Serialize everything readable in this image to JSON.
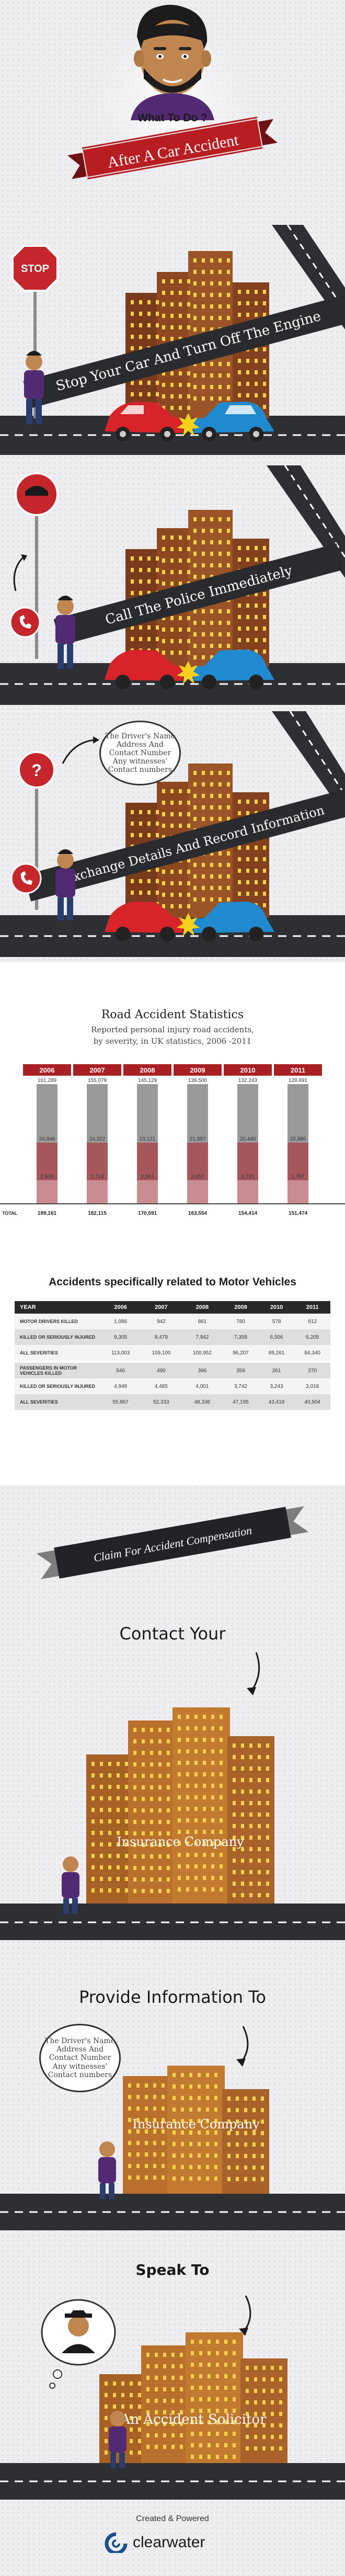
{
  "header": {
    "question": "What To Do ?",
    "title": "After A Car Accident"
  },
  "steps": [
    {
      "sign": "STOP",
      "text": "Stop Your Car And Turn Off The Engine"
    },
    {
      "text": "Call The Police Immediately"
    },
    {
      "text": "Exchange Details And Record Information",
      "sign": "?",
      "cloud": [
        "The Driver's Name",
        "Address And",
        "Contact Number",
        "Any witnesses'",
        "Contact numbers"
      ]
    }
  ],
  "stats": {
    "title": "Road Accident Statistics",
    "subtitle_line1": "Reported personal injury road accidents,",
    "subtitle_line2": "by severity, in UK statistics, 2006 -2011",
    "total_label": "TOTAL",
    "years": [
      "2006",
      "2007",
      "2008",
      "2009",
      "2010",
      "2011"
    ],
    "top_values": [
      "161,289",
      "155,079",
      "145,129",
      "139,500",
      "132,243",
      "128,691"
    ],
    "mid_values": [
      "24,946",
      "24,322",
      "23,121",
      "21,997",
      "20,440",
      "20,986"
    ],
    "low_values": [
      "2,926",
      "2,714",
      "2,341",
      "2,057",
      "1,731",
      "1,797"
    ],
    "totals": [
      "189,161",
      "182,115",
      "170,591",
      "163,554",
      "154,414",
      "151,474"
    ],
    "colors": {
      "year_bg": "#a81f24",
      "bar_top": "#9a9a9c",
      "bar_mid": "#a5575c",
      "bar_low": "#c98d91"
    }
  },
  "vehicles": {
    "title": "Accidents specifically related to Motor Vehicles",
    "columns": [
      "YEAR",
      "2006",
      "2007",
      "2008",
      "2009",
      "2010",
      "2011"
    ],
    "rows": [
      {
        "label": "MOTOR DRIVERS KILLED",
        "values": [
          "1,086",
          "942",
          "861",
          "780",
          "578",
          "612"
        ]
      },
      {
        "label": "KILLED OR SERIOUSLY INJURED",
        "values": [
          "9,305",
          "8,479",
          "7,942",
          "7,359",
          "6,506",
          "6,205"
        ]
      },
      {
        "label": "ALL SEVERITIES",
        "values": [
          "113,003",
          "109,100",
          "100,952",
          "96,207",
          "89,261",
          "84,340"
        ]
      },
      {
        "label": "PASSENGERS IN MOTOR VEHICLES KILLED",
        "values": [
          "546",
          "490",
          "396",
          "359",
          "261",
          "270"
        ]
      },
      {
        "label": "KILLED OR SERIOUSLY INJURED",
        "values": [
          "4,949",
          "4,485",
          "4,001",
          "3,742",
          "3,243",
          "3,018"
        ]
      },
      {
        "label": "ALL SEVERITIES",
        "values": [
          "55,867",
          "52,333",
          "48,336",
          "47,195",
          "43,418",
          "40,504"
        ]
      }
    ]
  },
  "claim": {
    "ribbon": "Claim For Accident Compensation",
    "contact_title": "Contact Your",
    "contact_building": "Insurance Company",
    "provide_title": "Provide Information To",
    "provide_building": "Insurance Company",
    "provide_cloud": [
      "The Driver's Name",
      "Address And",
      "Contact Number",
      "Any witnesses'",
      "Contact numbers"
    ],
    "speak_title": "Speak To",
    "speak_building": "An Accident Solicitor"
  },
  "footer": {
    "created": "Created & Powered",
    "brand": "clearwater"
  }
}
